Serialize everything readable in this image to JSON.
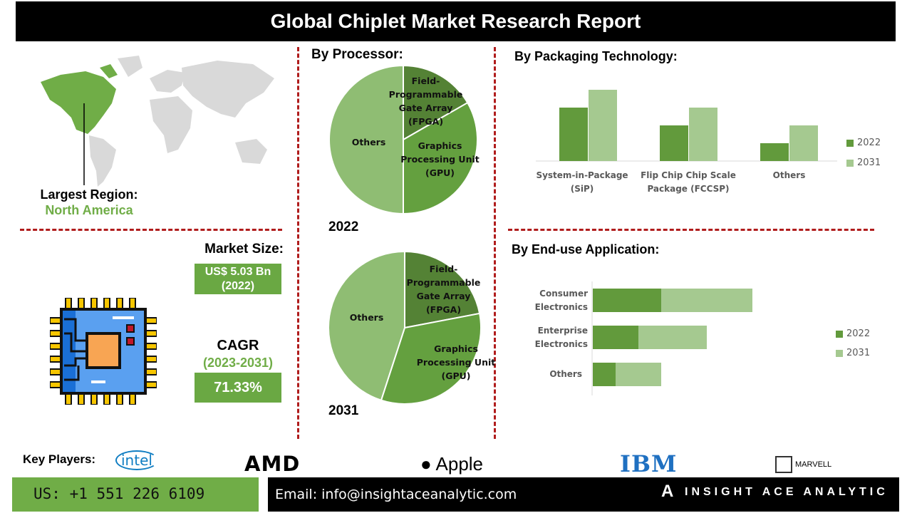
{
  "header": {
    "title": "Global Chiplet Market Research Report"
  },
  "region": {
    "label": "Largest Region:",
    "value": "North America"
  },
  "market_size": {
    "label": "Market Size:",
    "value": "US$ 5.03 Bn",
    "year": "(2022)"
  },
  "cagr": {
    "label": "CAGR",
    "period": "(2023-2031)",
    "value": "71.33%"
  },
  "colors": {
    "accent_green": "#6aa843",
    "region_green": "#70ad47",
    "divider_red": "#b01c1c",
    "series_2022": "#629a3c",
    "series_2031": "#a5c990",
    "fpga": "#548235",
    "gpu": "#64a03f",
    "others": "#8fbd73"
  },
  "chart_data": [
    {
      "type": "pie",
      "title": "By Processor:",
      "caption": "2022",
      "categories": [
        "Field-Programmable Gate Array (FPGA)",
        "Graphics Processing Unit (GPU)",
        "Others"
      ],
      "values": [
        16.7,
        33.3,
        50.0
      ]
    },
    {
      "type": "pie",
      "caption": "2031",
      "categories": [
        "Field-Programmable Gate Array (FPGA)",
        "Graphics Processing Unit (GPU)",
        "Others"
      ],
      "values": [
        22,
        33,
        45
      ]
    },
    {
      "type": "bar",
      "title": "By Packaging Technology:",
      "categories": [
        "System-in-Package (SiP)",
        "Flip Chip Chip Scale Package (FCCSP)",
        "Others"
      ],
      "series": [
        {
          "name": "2022",
          "values": [
            3,
            2,
            1
          ]
        },
        {
          "name": "2031",
          "values": [
            4,
            3,
            2
          ]
        }
      ],
      "legend": "right",
      "grid": false
    },
    {
      "type": "bar",
      "orientation": "horizontal-stacked",
      "title": "By End-use Application:",
      "categories": [
        "Consumer Electronics",
        "Enterprise Electronics",
        "Others"
      ],
      "series": [
        {
          "name": "2022",
          "values": [
            3,
            2,
            1
          ]
        },
        {
          "name": "2031",
          "values": [
            4,
            3,
            2
          ]
        }
      ],
      "legend": "right",
      "grid": false
    }
  ],
  "key_players": {
    "label": "Key Players:",
    "logos": [
      "intel",
      "AMD",
      "Apple",
      "IBM",
      "MARVELL"
    ]
  },
  "footer": {
    "phone": "US: +1 551 226 6109",
    "email": "Email: info@insightaceanalytic.com",
    "brand": "INSIGHT ACE ANALYTIC"
  }
}
